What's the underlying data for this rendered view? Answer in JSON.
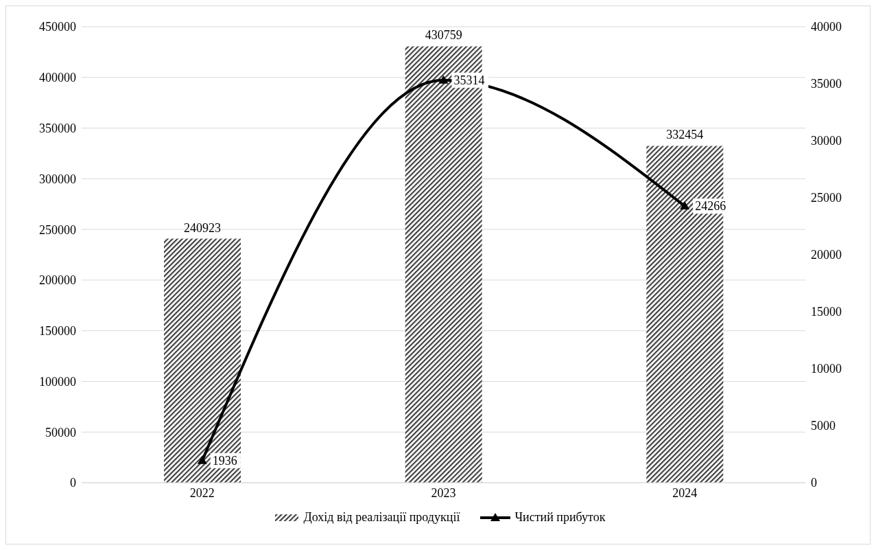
{
  "chart_data": {
    "type": "bar",
    "categories": [
      "2022",
      "2023",
      "2024"
    ],
    "series": [
      {
        "name": "Дохід від реалізації продукції",
        "color": "#404040",
        "values": [
          240923,
          430759,
          332454
        ]
      },
      {
        "name": "Чистий прибуток",
        "type": "line",
        "axis": "y2",
        "color": "#000000",
        "values": [
          1936,
          35314,
          24266
        ]
      }
    ],
    "ylim": [
      0,
      450000
    ],
    "yticks": [
      0,
      50000,
      100000,
      150000,
      200000,
      250000,
      300000,
      350000,
      400000,
      450000
    ],
    "y2lim": [
      0,
      40000
    ],
    "y2ticks": [
      0,
      5000,
      10000,
      15000,
      20000,
      25000,
      30000,
      35000,
      40000
    ],
    "grid": "y",
    "legend": "bottom",
    "marker": "triangle",
    "line_style": "solid",
    "data_labels": true
  }
}
